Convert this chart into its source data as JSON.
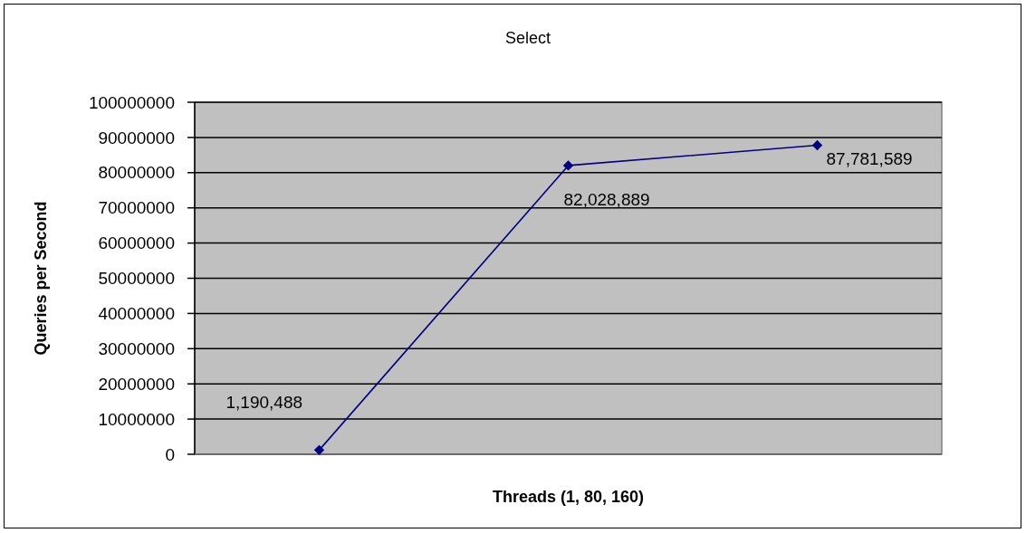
{
  "chart_data": {
    "type": "line",
    "title": "Select",
    "xlabel": "Threads (1, 80, 160)",
    "ylabel": "Queries per Second",
    "categories": [
      null,
      null,
      null
    ],
    "series": [
      {
        "color": "#000080",
        "values": [
          1190488,
          82028889,
          87781589
        ],
        "value_labels": [
          "1,190,488",
          "82,028,889",
          "87,781,589"
        ]
      }
    ],
    "ylim": [
      0,
      100000000
    ],
    "yticks": [
      0,
      10000000,
      20000000,
      30000000,
      40000000,
      50000000,
      60000000,
      70000000,
      80000000,
      90000000,
      100000000
    ],
    "grid": "y",
    "tick_labels": "y",
    "marker": "diamond",
    "line_style": "solid"
  }
}
